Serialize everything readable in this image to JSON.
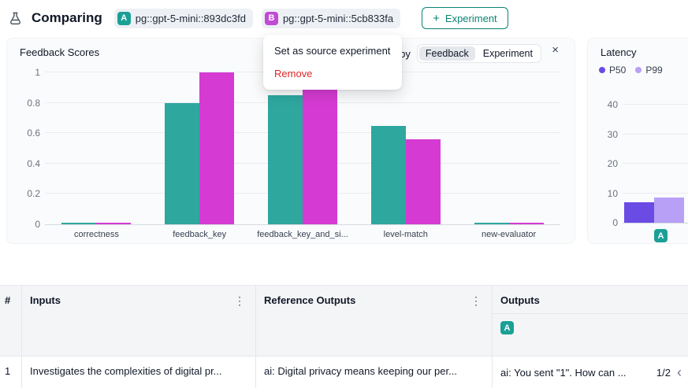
{
  "colors": {
    "exp_a": "#1AA095",
    "exp_b": "#C04BD5",
    "danger": "#dc2626",
    "accent_teal": "#0c8373"
  },
  "topbar": {
    "title": "Comparing",
    "experiments": [
      {
        "letter": "A",
        "name": "pg::gpt-5-mini::893dc3fd"
      },
      {
        "letter": "B",
        "name": "pg::gpt-5-mini::5cb833fa"
      }
    ],
    "add_experiment": {
      "icon": "+",
      "label": "Experiment"
    }
  },
  "context_menu": {
    "items": [
      {
        "label": "Set as source experiment",
        "danger": false
      },
      {
        "label": "Remove",
        "danger": true
      }
    ]
  },
  "feedback_card": {
    "title": "Feedback Scores",
    "group_by_label": "Group by",
    "chips": [
      {
        "label": "Feedback",
        "selected": true
      },
      {
        "label": "Experiment",
        "selected": false
      }
    ],
    "close_icon": "×"
  },
  "latency_card": {
    "title": "Latency",
    "x_badge": "A"
  },
  "chart_data": [
    {
      "type": "bar",
      "title": "Feedback Scores",
      "categories": [
        "correctness",
        "feedback_key",
        "feedback_key_and_si...",
        "level-match",
        "new-evaluator"
      ],
      "series": [
        {
          "name": "A",
          "color": "#2EA79F",
          "values": [
            0.01,
            0.8,
            0.85,
            0.65,
            0.01
          ]
        },
        {
          "name": "B",
          "color": "#D53BD3",
          "values": [
            0.01,
            1.0,
            0.97,
            0.56,
            0.01
          ]
        }
      ],
      "ylim": [
        0,
        1
      ],
      "yticks": [
        0,
        0.2,
        0.4,
        0.6,
        0.8,
        1
      ],
      "grid": true,
      "legend_position": "none"
    },
    {
      "type": "bar",
      "title": "Latency",
      "categories": [
        "A"
      ],
      "series": [
        {
          "name": "P50",
          "color": "#6A4BE4",
          "values": [
            7
          ]
        },
        {
          "name": "P99",
          "color": "#B7A0F5",
          "values": [
            8.5
          ]
        }
      ],
      "ylim": [
        0,
        40
      ],
      "yticks": [
        0,
        10,
        20,
        30,
        40
      ],
      "grid": true,
      "legend_position": "top-left"
    }
  ],
  "table": {
    "columns": [
      {
        "label": "#"
      },
      {
        "label": "Inputs"
      },
      {
        "label": "Reference Outputs"
      },
      {
        "label": "Outputs"
      }
    ],
    "outputs_badge": "A",
    "kebab_icon": "⋮",
    "rows": [
      {
        "num": "1",
        "inputs": "Investigates the complexities of digital pr...",
        "reference_outputs": "ai: Digital privacy means keeping our per...",
        "outputs": "ai: You sent \"1\". How can ...",
        "pagination": "1/2",
        "prev_icon": "‹"
      }
    ]
  }
}
